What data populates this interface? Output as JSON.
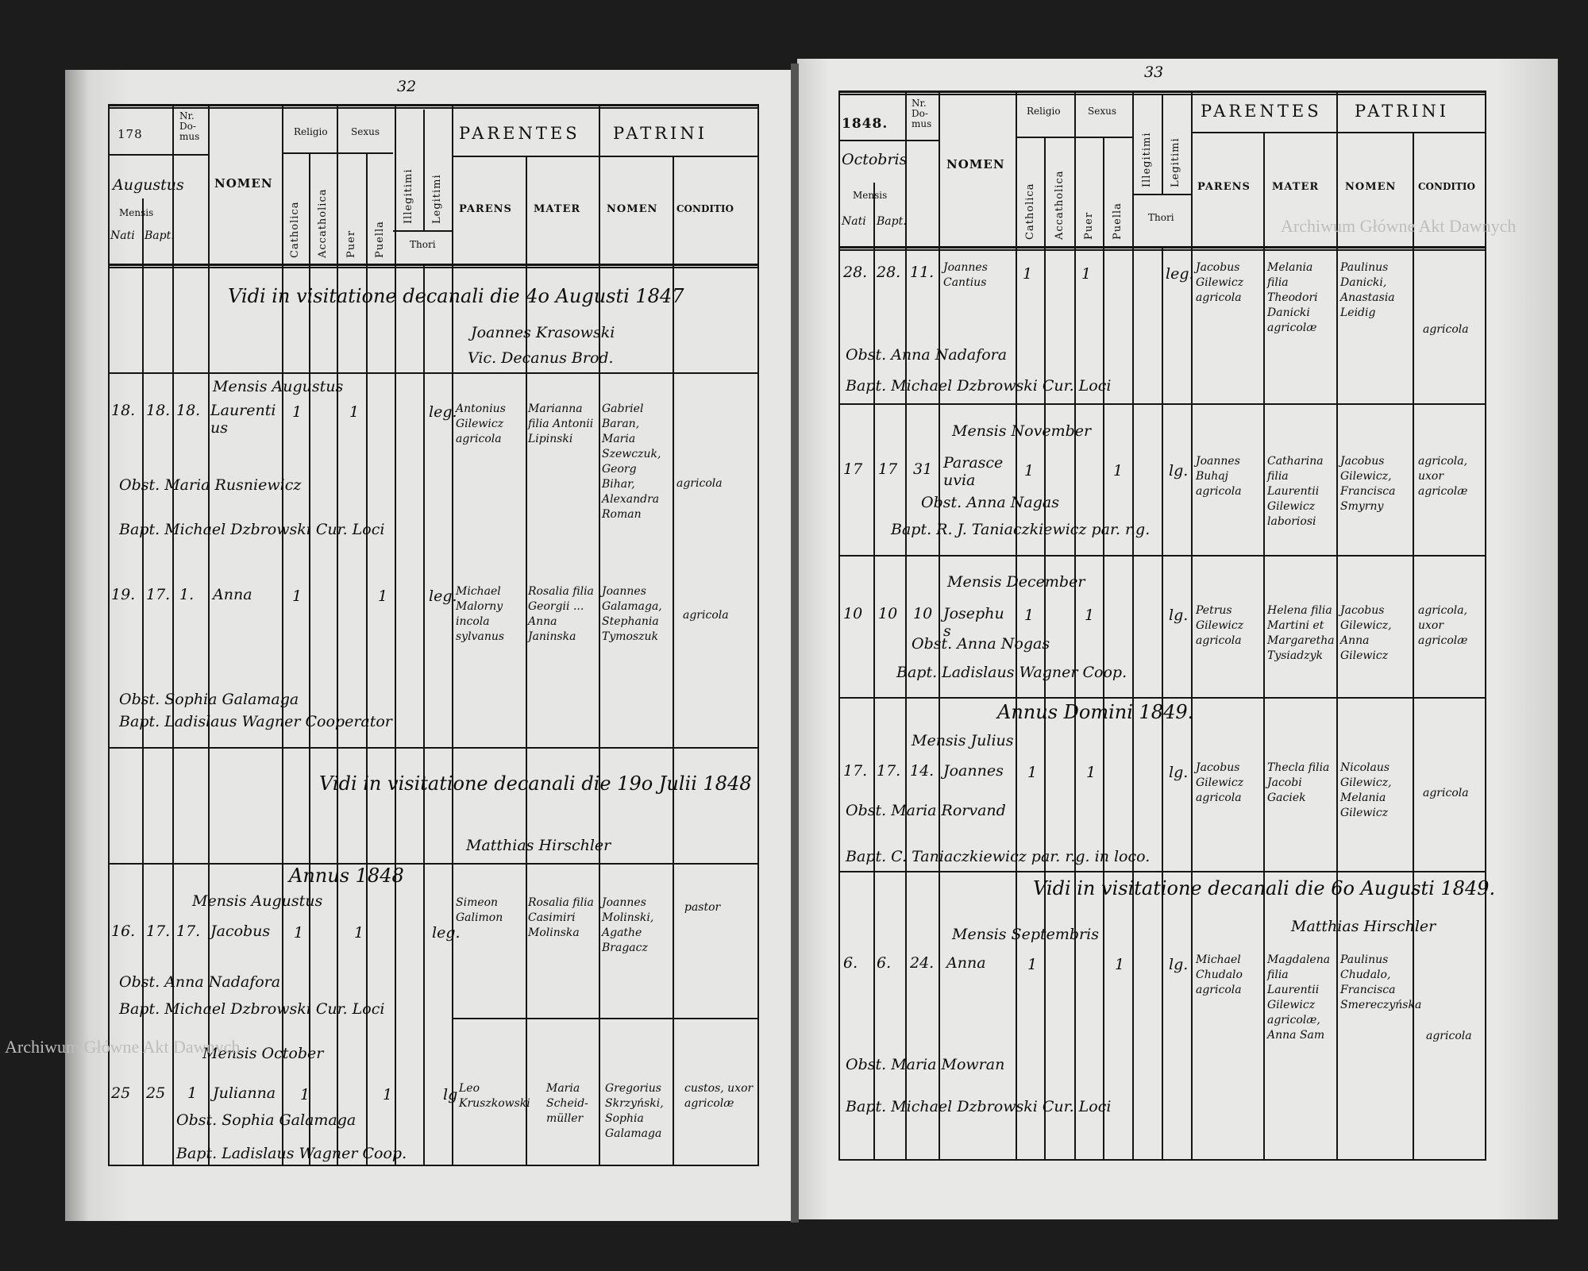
{
  "watermark": "Archiwum Główne Akt Dawnych",
  "left_page": {
    "page_number": "32",
    "header": {
      "year": "178",
      "nr_domus": "Nr. Do-mus",
      "month_handwritten": "Augustus",
      "mensis": "Mensis",
      "nati": "Nati",
      "bapt": "Bapt.",
      "nomen": "NOMEN",
      "religio": "Religio",
      "sexus": "Sexus",
      "catholica": "Catholica",
      "accatholica": "Accatholica",
      "puer": "Puer",
      "puella": "Puella",
      "illegitimi": "Illegitimi",
      "legitimi": "Legitimi",
      "thori": "Thori",
      "parentes": "PARENTES",
      "patrini": "PATRINI",
      "parens": "PARENS",
      "mater": "MATER",
      "patrini_nomen": "NOMEN",
      "conditio": "CONDITIO"
    },
    "visitation_1": {
      "text": "Vidi in visitatione decanali die 4o Augusti 1847",
      "sig1": "Joannes Krasowski",
      "sig2": "Vic. Decanus Brod."
    },
    "month_aug_1847": "Mensis Augustus",
    "entries": [
      {
        "nati": "18.",
        "bapt": "18.",
        "domus": "18.",
        "nomen": "Laurentius",
        "catholica": "1",
        "puer": "1",
        "legitimi": "leg.",
        "parens": "Antonius Gilewicz agricola",
        "mater": "Marianna filia Antonii Lipinski",
        "patrini": "Gabriel Baran, Maria Szewczuk, Georg Bihar, Alexandra Roman",
        "conditio": "agricola",
        "obstetrix": "Obst. Maria Rusniewicz",
        "baptizans": "Bapt. Michael Dzbrowski Cur. Loci"
      },
      {
        "nati": "19.",
        "bapt": "17.",
        "domus": "1.",
        "nomen": "Anna",
        "catholica": "1",
        "puella": "1",
        "legitimi": "leg.",
        "parens": "Michael Malorny incola sylvanus",
        "mater": "Rosalia filia Georgii ... Anna Janinska",
        "patrini": "Joannes Galamaga, Stephania Tymoszuk",
        "conditio": "agricola",
        "obstetrix": "Obst. Sophia Galamaga",
        "baptizans": "Bapt. Ladislaus Wagner Cooperator"
      }
    ],
    "visitation_2": {
      "text": "Vidi in visitatione decanali die 19o Julii 1848",
      "sig": "Matthias Hirschler"
    },
    "year_1848": "Annus 1848",
    "month_aug_1848": "Mensis Augustus",
    "entry_3": {
      "nati": "16.",
      "bapt": "17.",
      "domus": "17.",
      "nomen": "Jacobus",
      "catholica": "1",
      "puer": "1",
      "legitimi": "leg.",
      "parens": "Simeon Galimon",
      "mater": "Rosalia filia Casimiri Molinska",
      "patrini": "Joannes Molinski, Agathe Bragacz",
      "conditio": "pastor",
      "obstetrix": "Obst. Anna Nadafora",
      "baptizans": "Bapt. Michael Dzbrowski Cur. Loci"
    },
    "month_oct_1848": "Mensis October",
    "entry_4": {
      "nati": "25",
      "bapt": "25",
      "domus": "1",
      "nomen": "Julianna",
      "catholica": "1",
      "puella": "1",
      "legitimi": "lg",
      "parens": "Leo Kruszkowski",
      "mater": "Maria Scheid-müller",
      "patrini": "Gregorius Skrzyński, Sophia Galamaga",
      "conditio": "custos, uxor agricolæ",
      "obstetrix": "Obst. Sophia Galamaga",
      "baptizans": "Bapt. Ladislaus Wagner Coop."
    }
  },
  "right_page": {
    "page_number": "33",
    "header": {
      "year": "1848.",
      "nr_domus": "Nr. Do-mus",
      "month_handwritten": "Octobris",
      "mensis": "Mensis",
      "nati": "Nati",
      "bapt": "Bapt.",
      "nomen": "NOMEN",
      "religio": "Religio",
      "sexus": "Sexus",
      "catholica": "Catholica",
      "accatholica": "Accatholica",
      "puer": "Puer",
      "puella": "Puella",
      "illegitimi": "Illegitimi",
      "legitimi": "Legitimi",
      "thori": "Thori",
      "parentes": "PARENTES",
      "patrini": "PATRINI",
      "parens": "PARENS",
      "mater": "MATER",
      "patrini_nomen": "NOMEN",
      "conditio": "CONDITIO"
    },
    "entry_1": {
      "nati": "28.",
      "bapt": "28.",
      "domus": "11.",
      "nomen": "Joannes Cantius",
      "catholica": "1",
      "puer": "1",
      "legitimi": "leg.",
      "parens": "Jacobus Gilewicz agricola",
      "mater": "Melania filia Theodori Danicki agricolæ",
      "patrini": "Paulinus Danicki, Anastasia Leidig",
      "conditio": "agricola",
      "obstetrix": "Obst. Anna Nadafora",
      "baptizans": "Bapt. Michael Dzbrowski Cur. Loci"
    },
    "month_nov": "Mensis November",
    "entry_2": {
      "nati": "17",
      "bapt": "17",
      "domus": "31",
      "nomen": "Parasceuvia",
      "catholica": "1",
      "puella": "1",
      "legitimi": "lg.",
      "parens": "Joannes Buhaj agricola",
      "mater": "Catharina filia Laurentii Gilewicz laboriosi",
      "patrini": "Jacobus Gilewicz, Francisca Smyrny",
      "conditio": "agricola, uxor agricolæ",
      "obstetrix": "Obst. Anna Nagas",
      "baptizans": "Bapt. R. J. Taniaczkiewicz par. r.g."
    },
    "month_dec": "Mensis December",
    "entry_3": {
      "nati": "10",
      "bapt": "10",
      "domus": "10",
      "nomen": "Josephus",
      "catholica": "1",
      "puer": "1",
      "legitimi": "lg.",
      "parens": "Petrus Gilewicz agricola",
      "mater": "Helena filia Martini et Margaretha Tysiadzyk",
      "patrini": "Jacobus Gilewicz, Anna Gilewicz",
      "conditio": "agricola, uxor agricolæ",
      "obstetrix": "Obst. Anna Nogas",
      "baptizans": "Bapt. Ladislaus Wagner Coop."
    },
    "year_1849": "Annus Domini 1849.",
    "month_jul": "Mensis Julius",
    "entry_4": {
      "nati": "17.",
      "bapt": "17.",
      "domus": "14.",
      "nomen": "Joannes",
      "catholica": "1",
      "puer": "1",
      "legitimi": "lg.",
      "parens": "Jacobus Gilewicz agricola",
      "mater": "Thecla filia Jacobi Gaciek",
      "patrini": "Nicolaus Gilewicz, Melania Gilewicz",
      "conditio": "agricola",
      "obstetrix": "Obst. Maria Rorvand",
      "baptizans": "Bapt. C. Taniaczkiewicz par. r.g. in loco."
    },
    "visitation": {
      "text": "Vidi in visitatione decanali die 6o Augusti 1849.",
      "sig": "Matthias Hirschler"
    },
    "month_sep": "Mensis Septembris",
    "entry_5": {
      "nati": "6.",
      "bapt": "6.",
      "domus": "24.",
      "nomen": "Anna",
      "catholica": "1",
      "puella": "1",
      "legitimi": "lg.",
      "parens": "Michael Chudalo agricola",
      "mater": "Magdalena filia Laurentii Gilewicz agricolæ, Anna Sam",
      "patrini": "Paulinus Chudalo, Francisca Smereczyńska",
      "conditio": "agricola",
      "obstetrix": "Obst. Maria Mowran",
      "baptizans": "Bapt. Michael Dzbrowski Cur. Loci"
    }
  }
}
